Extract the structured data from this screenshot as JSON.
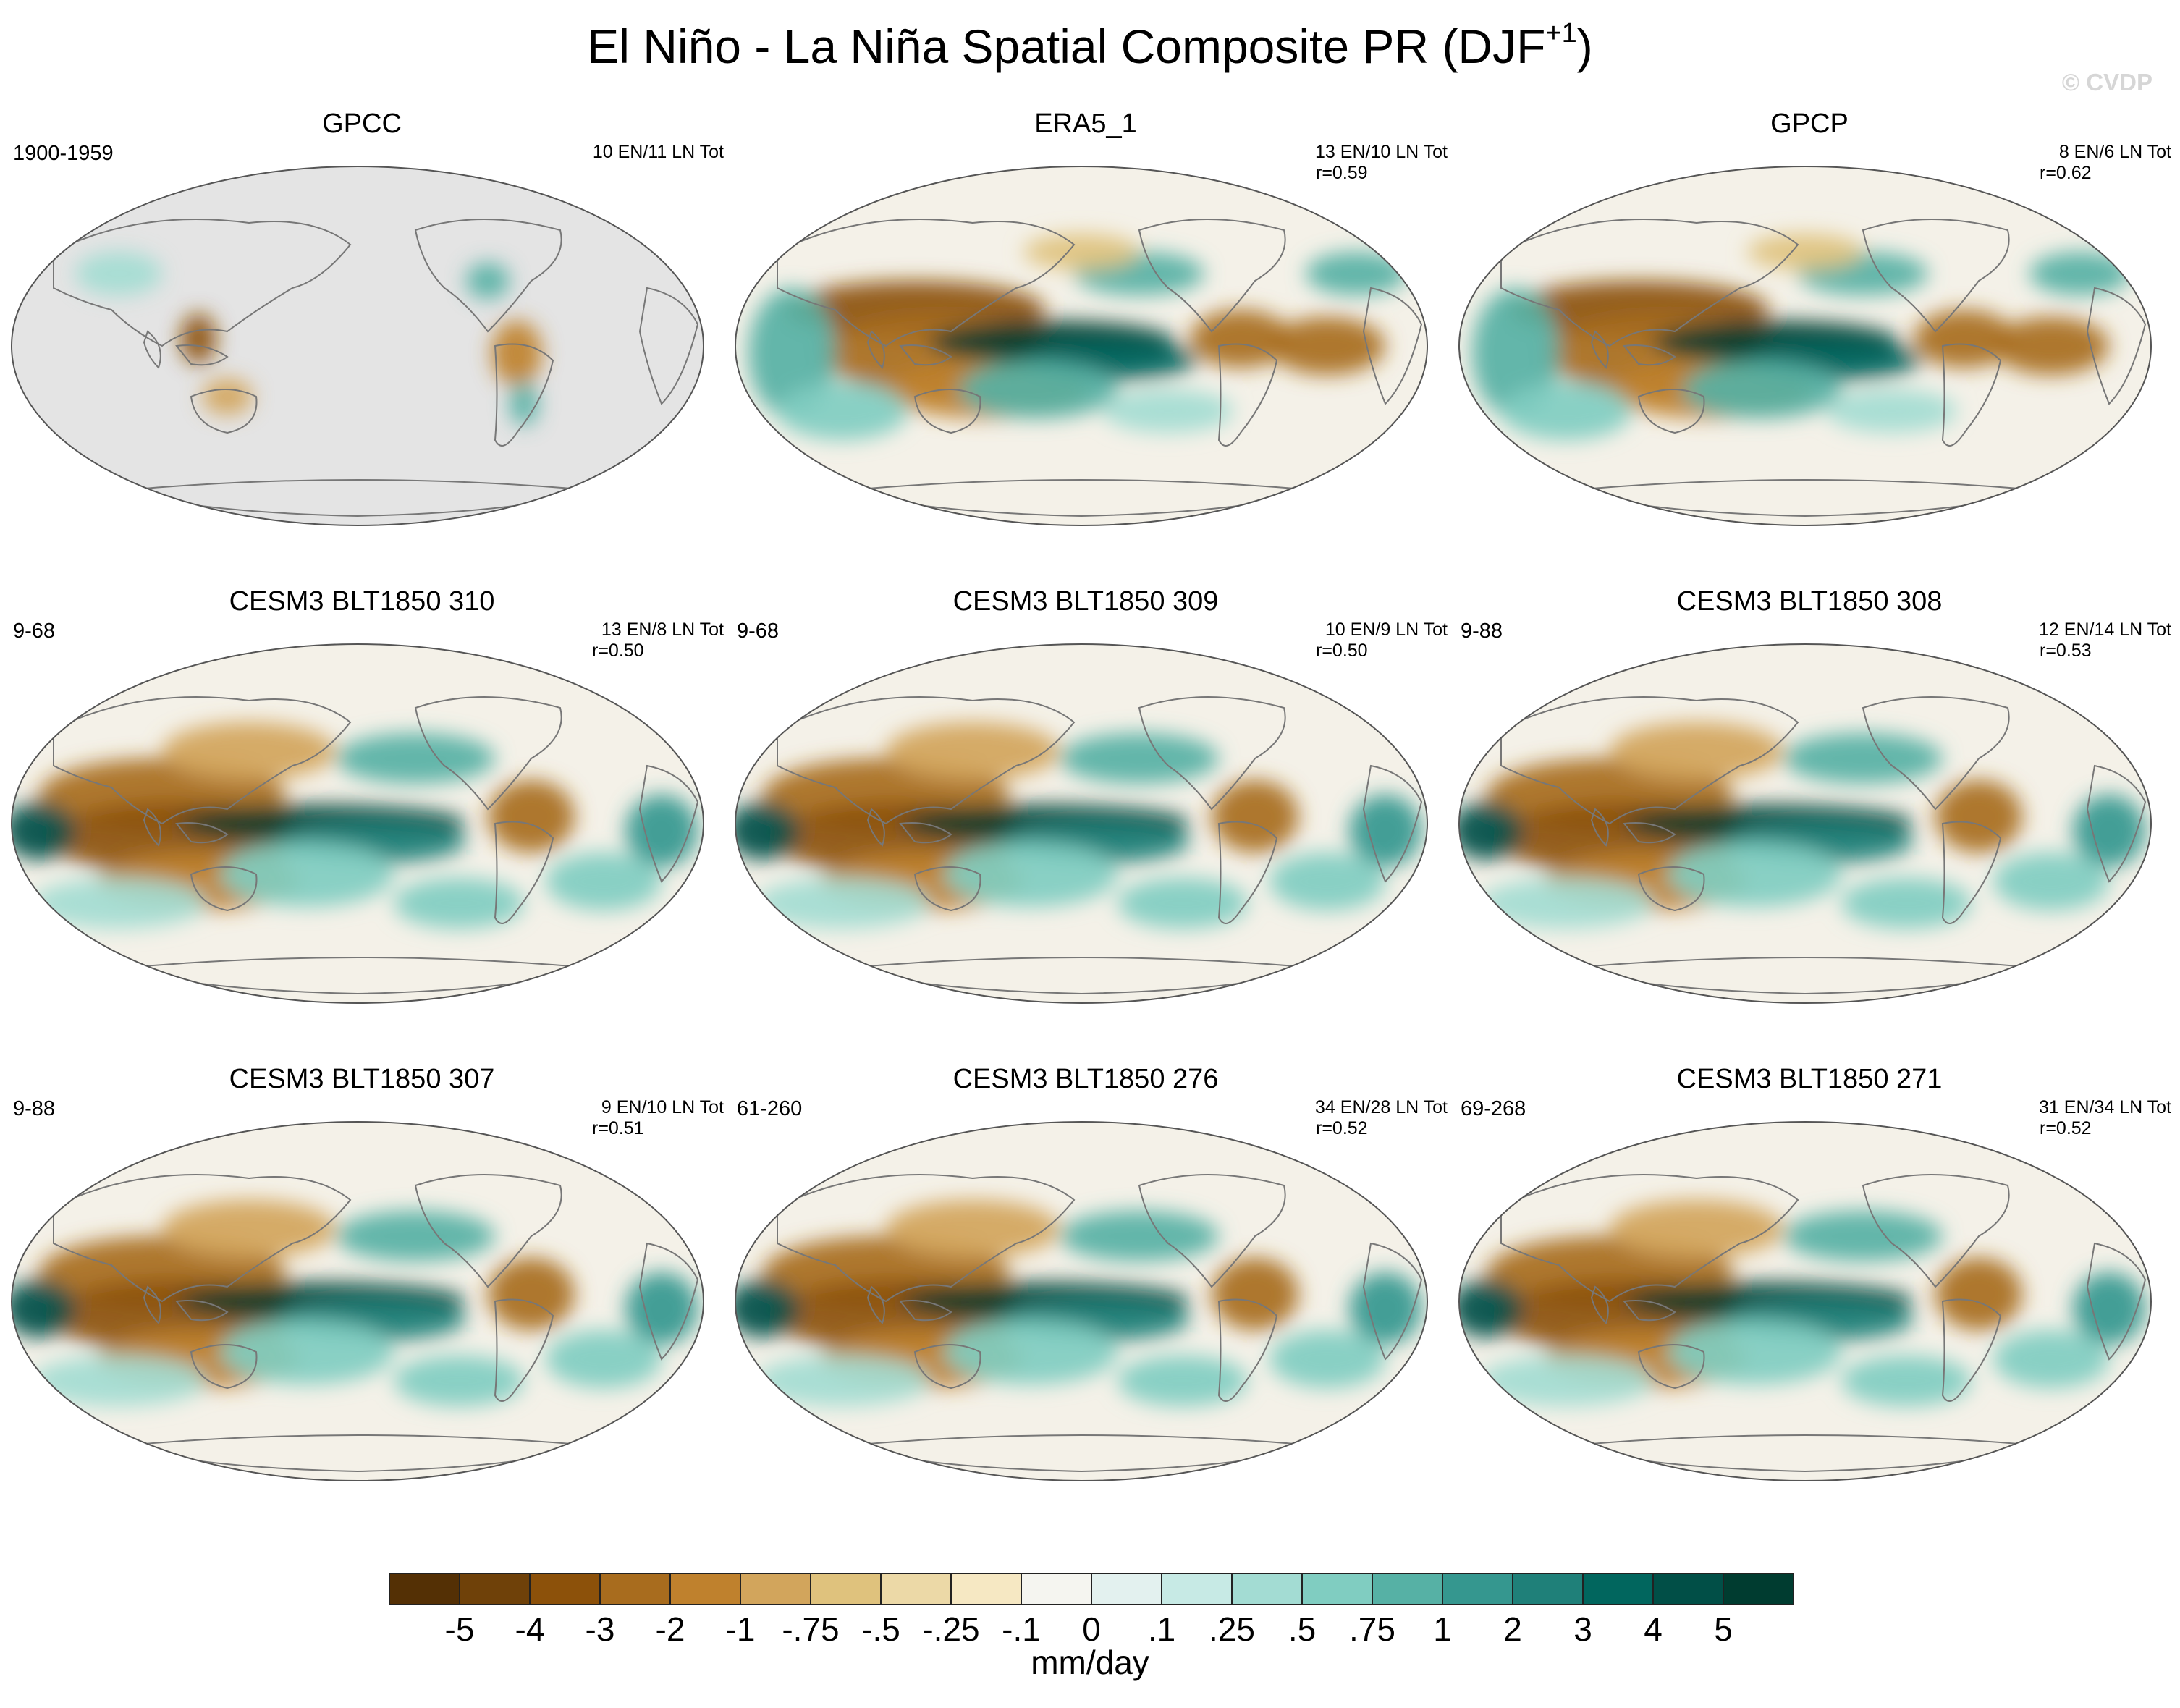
{
  "title": "El Niño - La Niña Spatial Composite PR (DJF",
  "title_sup": "+1",
  "title_end": ")",
  "watermark": "© CVDP",
  "colors": {
    "land_missing": "#e4e4e4",
    "ocean_bg": "#f4f1e8",
    "coast": "#777777"
  },
  "panels": [
    {
      "name": "GPCC",
      "period": "1900-1959",
      "count": "10 EN/11 LN Tot",
      "corr": "",
      "style": "gpcc"
    },
    {
      "name": "ERA5_1",
      "period": "",
      "count": "13 EN/10 LN Tot",
      "corr": "r=0.59",
      "style": "obs"
    },
    {
      "name": "GPCP",
      "period": "",
      "count": "8 EN/6 LN Tot",
      "corr": "r=0.62",
      "style": "obs"
    },
    {
      "name": "CESM3 BLT1850 310",
      "period": "9-68",
      "count": "13 EN/8 LN Tot",
      "corr": "r=0.50",
      "style": "model"
    },
    {
      "name": "CESM3 BLT1850 309",
      "period": "9-68",
      "count": "10 EN/9 LN Tot",
      "corr": "r=0.50",
      "style": "model"
    },
    {
      "name": "CESM3 BLT1850 308",
      "period": "9-88",
      "count": "12 EN/14 LN Tot",
      "corr": "r=0.53",
      "style": "model"
    },
    {
      "name": "CESM3 BLT1850 307",
      "period": "9-88",
      "count": "9 EN/10 LN Tot",
      "corr": "r=0.51",
      "style": "model"
    },
    {
      "name": "CESM3 BLT1850 276",
      "period": "61-260",
      "count": "34 EN/28 LN Tot",
      "corr": "r=0.52",
      "style": "model"
    },
    {
      "name": "CESM3 BLT1850 271",
      "period": "69-268",
      "count": "31 EN/34 LN Tot",
      "corr": "r=0.52",
      "style": "model"
    }
  ],
  "colorbar": {
    "colors": [
      "#543005",
      "#6f4109",
      "#8c510a",
      "#a86c1e",
      "#bf812d",
      "#d2a55c",
      "#dfc27d",
      "#ecd9a7",
      "#f6e8c3",
      "#f5f5f0",
      "#e3f1ef",
      "#c7eae5",
      "#a3dcd3",
      "#80cdc1",
      "#56b1a5",
      "#35978f",
      "#1f8079",
      "#01665e",
      "#014f47",
      "#003c30"
    ],
    "labels": [
      "-5",
      "-4",
      "-3",
      "-2",
      "-1",
      "-.75",
      "-.5",
      "-.25",
      "-.1",
      "0",
      ".1",
      ".25",
      ".5",
      ".75",
      "1",
      "2",
      "3",
      "4",
      "5"
    ],
    "units": "mm/day"
  }
}
